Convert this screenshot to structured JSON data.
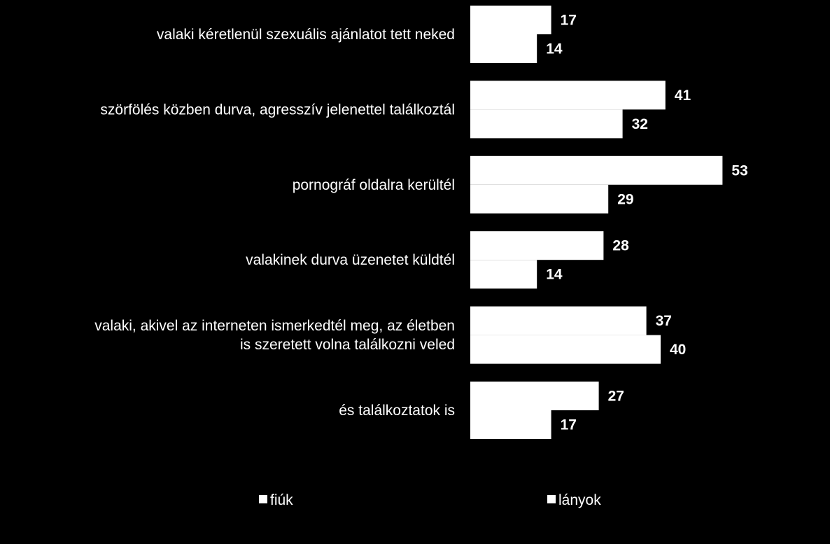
{
  "chart_data": {
    "type": "bar",
    "orientation": "horizontal",
    "categories": [
      [
        "valaki kéretlenül szexuális ajánlatot tett neked"
      ],
      [
        "szörfölés közben durva, agresszív jelenettel találkoztál"
      ],
      [
        "pornográf oldalra kerültél"
      ],
      [
        "valakinek durva üzenetet küldtél"
      ],
      [
        "valaki, akivel az interneten ismerkedtél meg, az életben",
        "is szeretett volna találkozni veled"
      ],
      [
        "és találkoztatok is"
      ]
    ],
    "series": [
      {
        "name": "fiúk",
        "values": [
          17,
          41,
          53,
          28,
          37,
          27
        ]
      },
      {
        "name": "lányok",
        "values": [
          14,
          32,
          29,
          14,
          40,
          17
        ]
      }
    ],
    "title": "",
    "xlabel": "",
    "ylabel": "",
    "xlim": [
      0,
      60
    ],
    "grid": false,
    "legend_position": "bottom",
    "colors": {
      "background": "#000000",
      "bar_fill": "#ffffff",
      "text": "#ffffff"
    }
  }
}
